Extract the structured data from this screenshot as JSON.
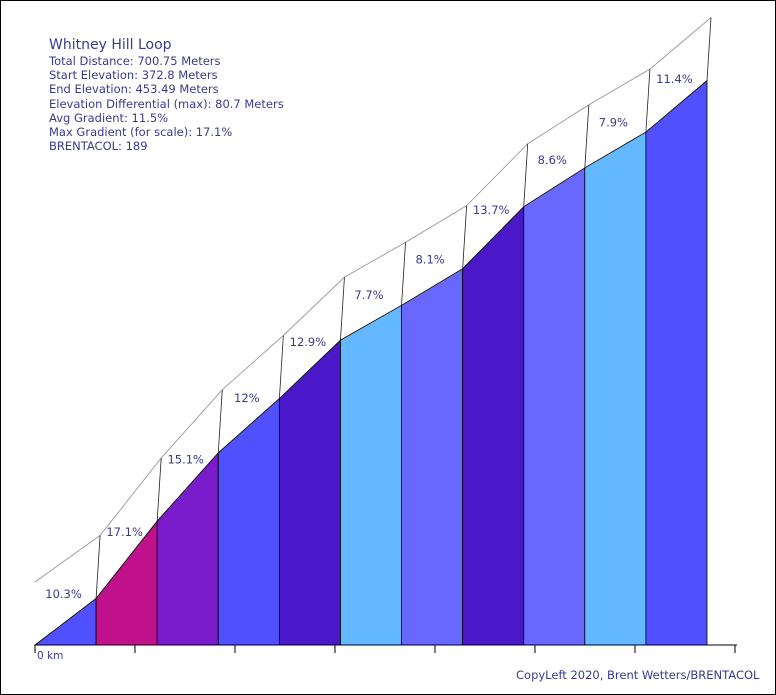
{
  "info": {
    "title": "Whitney Hill Loop",
    "total_distance": "Total Distance: 700.75 Meters",
    "start_elevation": "Start Elevation: 372.8 Meters",
    "end_elevation": "End Elevation: 453.49 Meters",
    "elevation_diff": "Elevation Differential (max): 80.7 Meters",
    "avg_gradient": "Avg Gradient: 11.5%",
    "max_gradient": "Max Gradient (for scale): 17.1%",
    "brentacol": "BRENTACOL: 189"
  },
  "copyleft": "CopyLeft 2020, Brent Wetters/BRENTACOL",
  "chart_data": {
    "type": "area",
    "title": "Whitney Hill Loop",
    "x_unit": "km",
    "x_tick_labels": [
      "0 km"
    ],
    "xlim": [
      0,
      0.70075
    ],
    "start_elevation": 372.8,
    "segments": [
      {
        "label": "10.3%",
        "gradient": 10.3,
        "color": "#5050ff"
      },
      {
        "label": "17.1%",
        "gradient": 17.1,
        "color": "#c0108c"
      },
      {
        "label": "15.1%",
        "gradient": 15.1,
        "color": "#7a1ccc"
      },
      {
        "label": "12%",
        "gradient": 12.0,
        "color": "#5050ff"
      },
      {
        "label": "12.9%",
        "gradient": 12.9,
        "color": "#4a18c8"
      },
      {
        "label": "7.7%",
        "gradient": 7.7,
        "color": "#64b8ff"
      },
      {
        "label": "8.1%",
        "gradient": 8.1,
        "color": "#6868ff"
      },
      {
        "label": "13.7%",
        "gradient": 13.7,
        "color": "#4a18c8"
      },
      {
        "label": "8.6%",
        "gradient": 8.6,
        "color": "#6868ff"
      },
      {
        "label": "7.9%",
        "gradient": 7.9,
        "color": "#64b8ff"
      },
      {
        "label": "11.4%",
        "gradient": 11.4,
        "color": "#5050ff"
      }
    ]
  }
}
